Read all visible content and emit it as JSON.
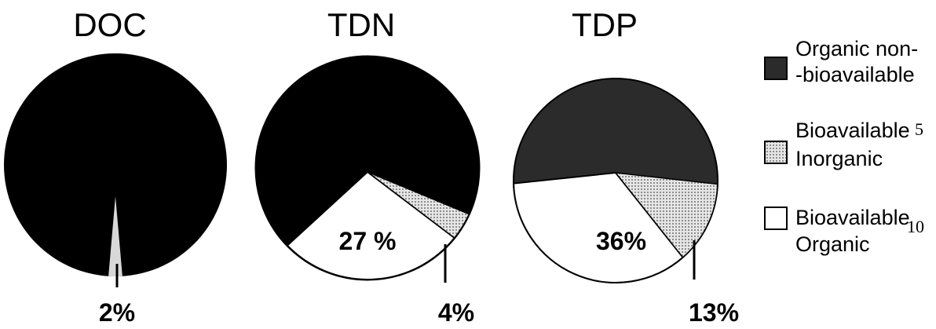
{
  "chart_data": [
    {
      "type": "pie",
      "title": "DOC",
      "slices": [
        {
          "name": "Organic non-bioavailable",
          "value": 98,
          "label": ""
        },
        {
          "name": "Bioavailable Organic",
          "value": 2,
          "label": "2%"
        }
      ]
    },
    {
      "type": "pie",
      "title": "TDN",
      "slices": [
        {
          "name": "Organic non-bioavailable",
          "value": 69,
          "label": ""
        },
        {
          "name": "Bioavailable Inorganic",
          "value": 4,
          "label": "4%"
        },
        {
          "name": "Bioavailable Organic",
          "value": 27,
          "label": "27 %"
        }
      ]
    },
    {
      "type": "pie",
      "title": "TDP",
      "slices": [
        {
          "name": "Organic non-bioavailable",
          "value": 51,
          "label": ""
        },
        {
          "name": "Bioavailable Inorganic",
          "value": 13,
          "label": "13%"
        },
        {
          "name": "Bioavailable Organic",
          "value": 36,
          "label": "36%"
        }
      ]
    }
  ],
  "legend": {
    "placement": "right",
    "items": [
      {
        "line1": "Organic non-",
        "line2": "-bioavailable",
        "swatch": "solid-dark"
      },
      {
        "line1": "Bioavailable",
        "line2": "Inorganic",
        "swatch": "dotted-gray"
      },
      {
        "line1": "Bioavailable",
        "line2": "Organic",
        "swatch": "white"
      }
    ]
  },
  "line_numbers": [
    "5",
    "10"
  ],
  "colors": {
    "doc_organic": "#000000",
    "tdn_organic": "#000000",
    "tdp_organic": "#2b2b2b",
    "inorganic": "#d0d0d0",
    "bio_organic": "#ffffff",
    "doc_small": "#d8d8d8",
    "legend_dark": "#2b2b2b"
  }
}
